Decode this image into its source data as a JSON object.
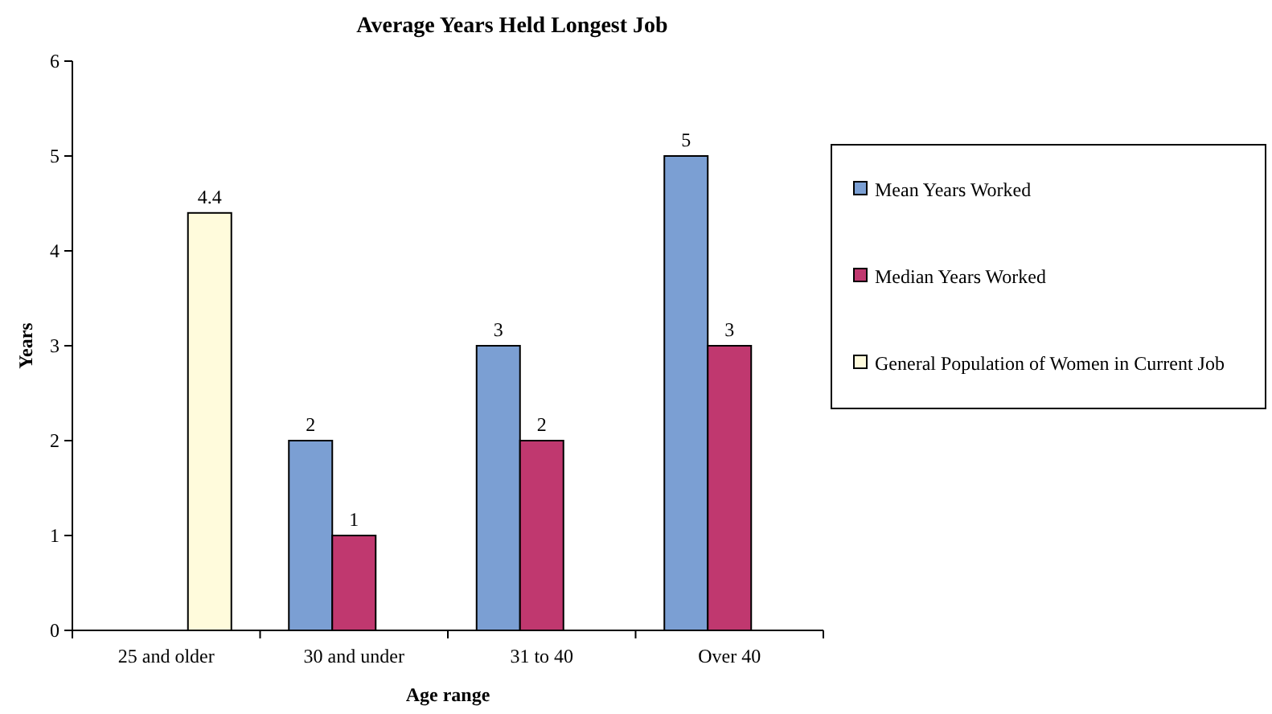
{
  "chart_data": {
    "type": "bar",
    "title": "Average Years Held Longest Job",
    "xlabel": "Age range",
    "ylabel": "Years",
    "categories": [
      "25 and older",
      "30 and under",
      "31 to 40",
      "Over 40"
    ],
    "series": [
      {
        "name": "Mean Years Worked",
        "color": "#7b9fd3",
        "values": [
          null,
          2,
          3,
          5
        ]
      },
      {
        "name": "Median Years Worked",
        "color": "#c0386f",
        "values": [
          null,
          1,
          2,
          3
        ]
      },
      {
        "name": "General Population of Women in Current Job",
        "color": "#fffbdc",
        "values": [
          4.4,
          null,
          null,
          null
        ]
      }
    ],
    "ylim": [
      0,
      6
    ],
    "yticks": [
      0,
      1,
      2,
      3,
      4,
      5,
      6
    ],
    "grid": false,
    "legend": "right",
    "data_labels": true
  }
}
